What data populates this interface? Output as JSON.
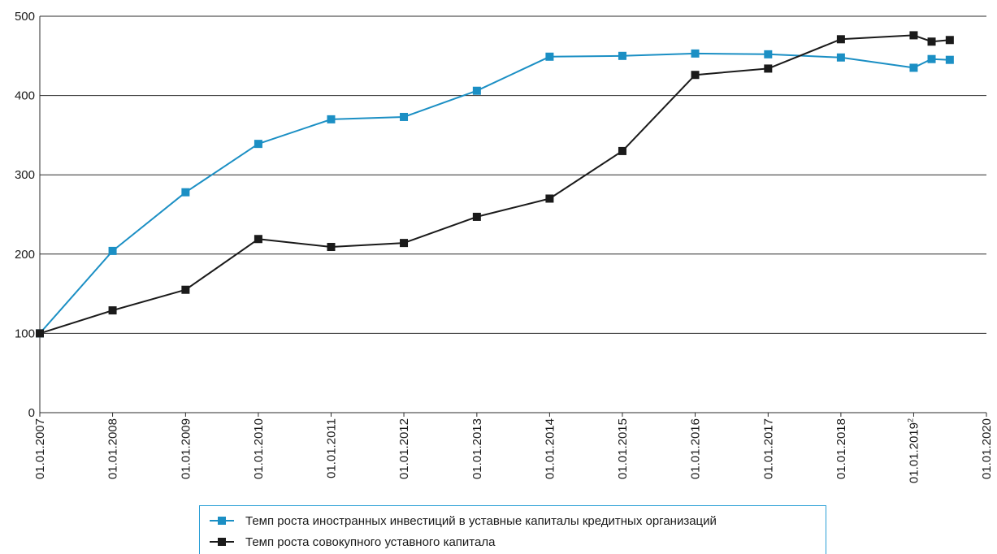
{
  "chart_data": {
    "type": "line",
    "title": "",
    "xlabel": "",
    "ylabel": "",
    "ylim": [
      0,
      500
    ],
    "yticks": [
      "0",
      "100",
      "200",
      "300",
      "400",
      "500"
    ],
    "xticks": [
      "01.01.2007",
      "01.01.2008",
      "01.01.2009",
      "01.01.2010",
      "01.01.2011",
      "01.01.2012",
      "01.01.2013",
      "01.01.2014",
      "01.01.2015",
      "01.01.2016",
      "01.01.2017",
      "01.01.2018",
      "01.01.2019",
      "01.01.2020"
    ],
    "xtick_superscript": {
      "01.01.2019": "2"
    },
    "grid": "horizontal",
    "legend_position": "bottom",
    "series": [
      {
        "name": "Темп роста иностранных инвестиций в уставные капиталы кредитных организаций",
        "color": "#1b8fc4",
        "x": [
          "01.01.2007",
          "01.01.2008",
          "01.01.2009",
          "01.01.2010",
          "01.01.2011",
          "01.01.2012",
          "01.01.2013",
          "01.01.2014",
          "01.01.2015",
          "01.01.2016",
          "01.01.2017",
          "01.01.2018",
          "01.01.2019",
          "01.04.2019",
          "01.07.2019"
        ],
        "values": [
          100,
          204,
          278,
          339,
          370,
          373,
          406,
          449,
          450,
          453,
          452,
          448,
          435,
          446,
          445
        ]
      },
      {
        "name": "Темп роста совокупного уставного капитала",
        "color": "#1a1a1a",
        "x": [
          "01.01.2007",
          "01.01.2008",
          "01.01.2009",
          "01.01.2010",
          "01.01.2011",
          "01.01.2012",
          "01.01.2013",
          "01.01.2014",
          "01.01.2015",
          "01.01.2016",
          "01.01.2017",
          "01.01.2018",
          "01.01.2019",
          "01.04.2019",
          "01.07.2019"
        ],
        "values": [
          100,
          129,
          155,
          219,
          209,
          214,
          247,
          270,
          330,
          426,
          434,
          471,
          476,
          468,
          470
        ]
      }
    ]
  }
}
